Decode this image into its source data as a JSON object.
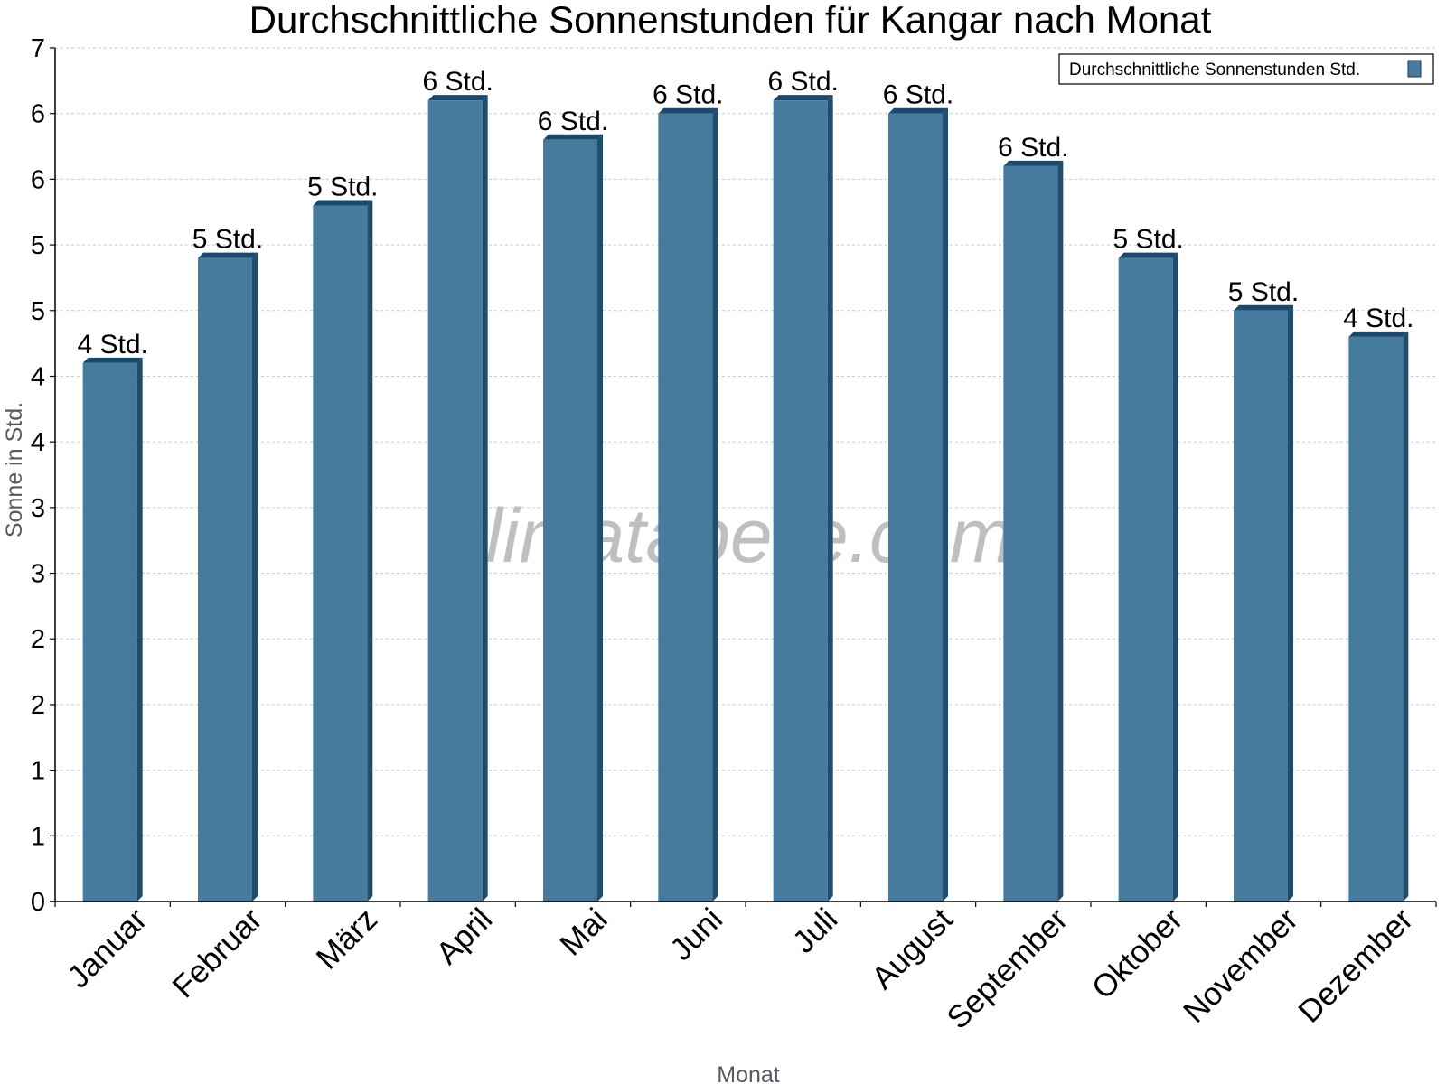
{
  "chart_data": {
    "type": "bar",
    "title": "Durchschnittliche Sonnenstunden für Kangar nach Monat",
    "xlabel": "Monat",
    "ylabel": "Sonne in Std.",
    "ylim": [
      0,
      6.5
    ],
    "y_ticks": [
      0,
      0.5,
      1,
      1.5,
      2,
      2.5,
      3,
      3.5,
      4,
      4.5,
      5,
      5.5,
      6,
      6.5
    ],
    "y_tick_labels": [
      "0",
      "1",
      "1",
      "2",
      "2",
      "3",
      "3",
      "4",
      "4",
      "5",
      "5",
      "6",
      "6",
      "7"
    ],
    "categories": [
      "Januar",
      "Februar",
      "März",
      "April",
      "Mai",
      "Juni",
      "Juli",
      "August",
      "September",
      "Oktober",
      "November",
      "Dezember"
    ],
    "series": [
      {
        "name": "Durchschnittliche Sonnenstunden Std.",
        "color": "#467b9e",
        "values": [
          4.1,
          4.9,
          5.3,
          6.1,
          5.8,
          6.0,
          6.1,
          6.0,
          5.6,
          4.9,
          4.5,
          4.3
        ],
        "labels": [
          "4 Std.",
          "5 Std.",
          "5 Std.",
          "6 Std.",
          "6 Std.",
          "6 Std.",
          "6 Std.",
          "6 Std.",
          "6 Std.",
          "5 Std.",
          "5 Std.",
          "4 Std."
        ]
      }
    ],
    "grid": true,
    "legend_position": "top-right"
  },
  "watermark": "klimatabelle.com",
  "colors": {
    "bar_face": "#467b9e",
    "bar_side": "#1e4d6e",
    "bar_top": "#1a4a6b",
    "grid": "#c8c8c8",
    "axis": "#000000"
  }
}
